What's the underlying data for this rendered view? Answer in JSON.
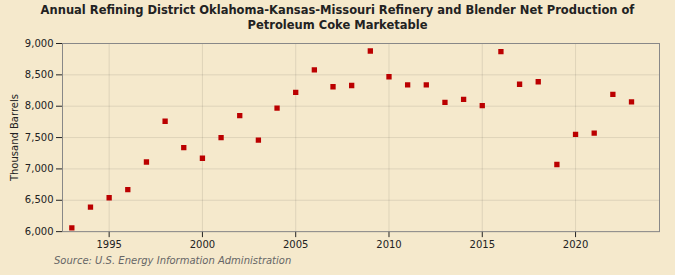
{
  "chart_data": {
    "type": "scatter",
    "title": "Annual Refining District Oklahoma-Kansas-Missouri Refinery and Blender Net Production of\nPetroleum Coke Marketable",
    "ylabel": "Thousand Barrels",
    "annotations": [
      "Source: U.S. Energy Information Administration"
    ],
    "x": [
      1993,
      1994,
      1995,
      1996,
      1997,
      1998,
      1999,
      2000,
      2001,
      2002,
      2003,
      2004,
      2005,
      2006,
      2007,
      2008,
      2009,
      2010,
      2011,
      2012,
      2013,
      2014,
      2015,
      2016,
      2017,
      2018,
      2019,
      2020,
      2021,
      2022,
      2023
    ],
    "values": [
      6060,
      6390,
      6540,
      6670,
      7110,
      7760,
      7340,
      7170,
      7500,
      7850,
      7460,
      7970,
      8220,
      8580,
      8310,
      8330,
      8880,
      8470,
      8340,
      8340,
      8060,
      8110,
      8010,
      8870,
      8350,
      8390,
      7070,
      7550,
      7570,
      8190,
      8070
    ],
    "color": "#bb0000",
    "marker": "square",
    "xlim": [
      1992.5,
      2024.5
    ],
    "xticks": [
      1995,
      2000,
      2005,
      2010,
      2015,
      2020
    ],
    "ylim": [
      6000,
      9000
    ],
    "yticks": [
      {
        "value": 6000,
        "label": "6,000"
      },
      {
        "value": 6500,
        "label": "6,500"
      },
      {
        "value": 7000,
        "label": "7,000"
      },
      {
        "value": 7500,
        "label": "7,500"
      },
      {
        "value": 8000,
        "label": "8,000"
      },
      {
        "value": 8500,
        "label": "8,500"
      },
      {
        "value": 9000,
        "label": "9,000"
      }
    ],
    "grid": true
  }
}
